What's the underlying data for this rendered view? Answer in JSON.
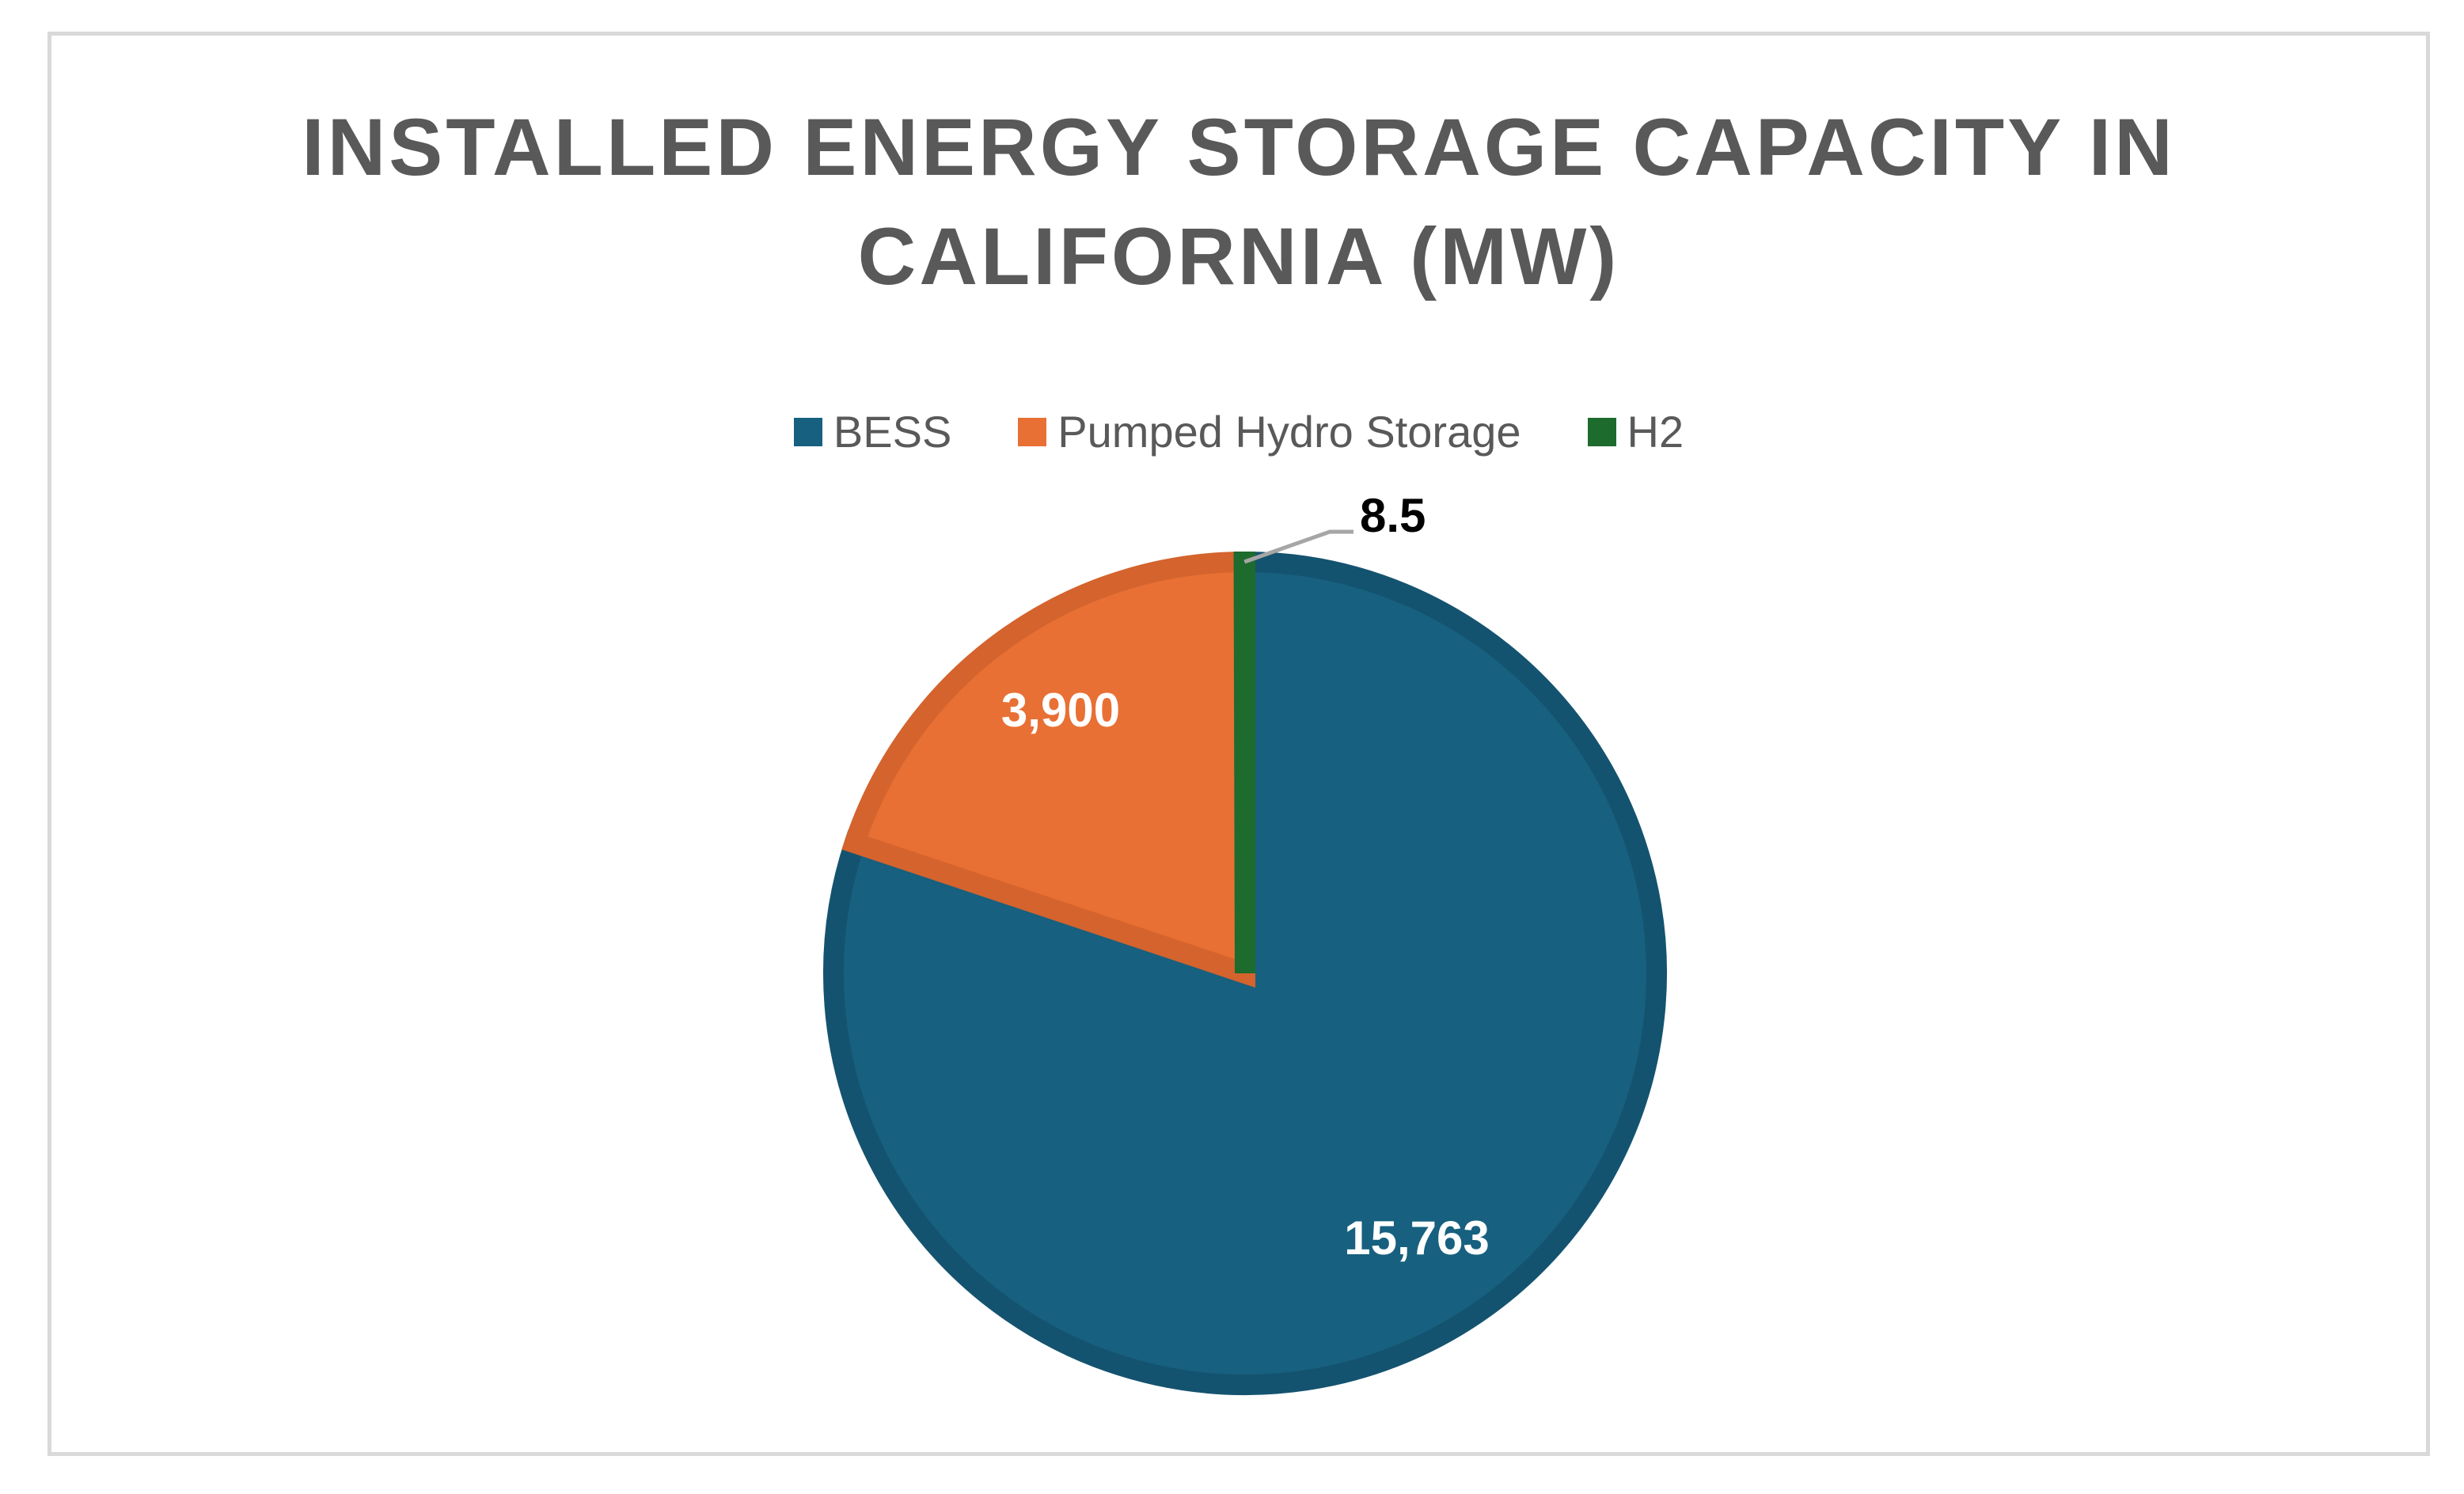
{
  "chart_data": {
    "type": "pie",
    "title": [
      "INSTALLED ENERGY STORAGE CAPACITY IN",
      "CALIFORNIA (MW)"
    ],
    "legend_position": "top",
    "slices": [
      {
        "name": "BESS",
        "value": 15763,
        "label": "15,763",
        "color": "#17607f",
        "border": "#14536f",
        "label_color": "#ffffff"
      },
      {
        "name": "Pumped Hydro Storage",
        "value": 3900,
        "label": "3,900",
        "color": "#e87034",
        "border": "#d4632d",
        "label_color": "#ffffff"
      },
      {
        "name": "H2",
        "value": 8.5,
        "label": "8.5",
        "color": "#1e6b2e",
        "border": "#1e6b2e",
        "label_color": "#000000"
      }
    ]
  }
}
